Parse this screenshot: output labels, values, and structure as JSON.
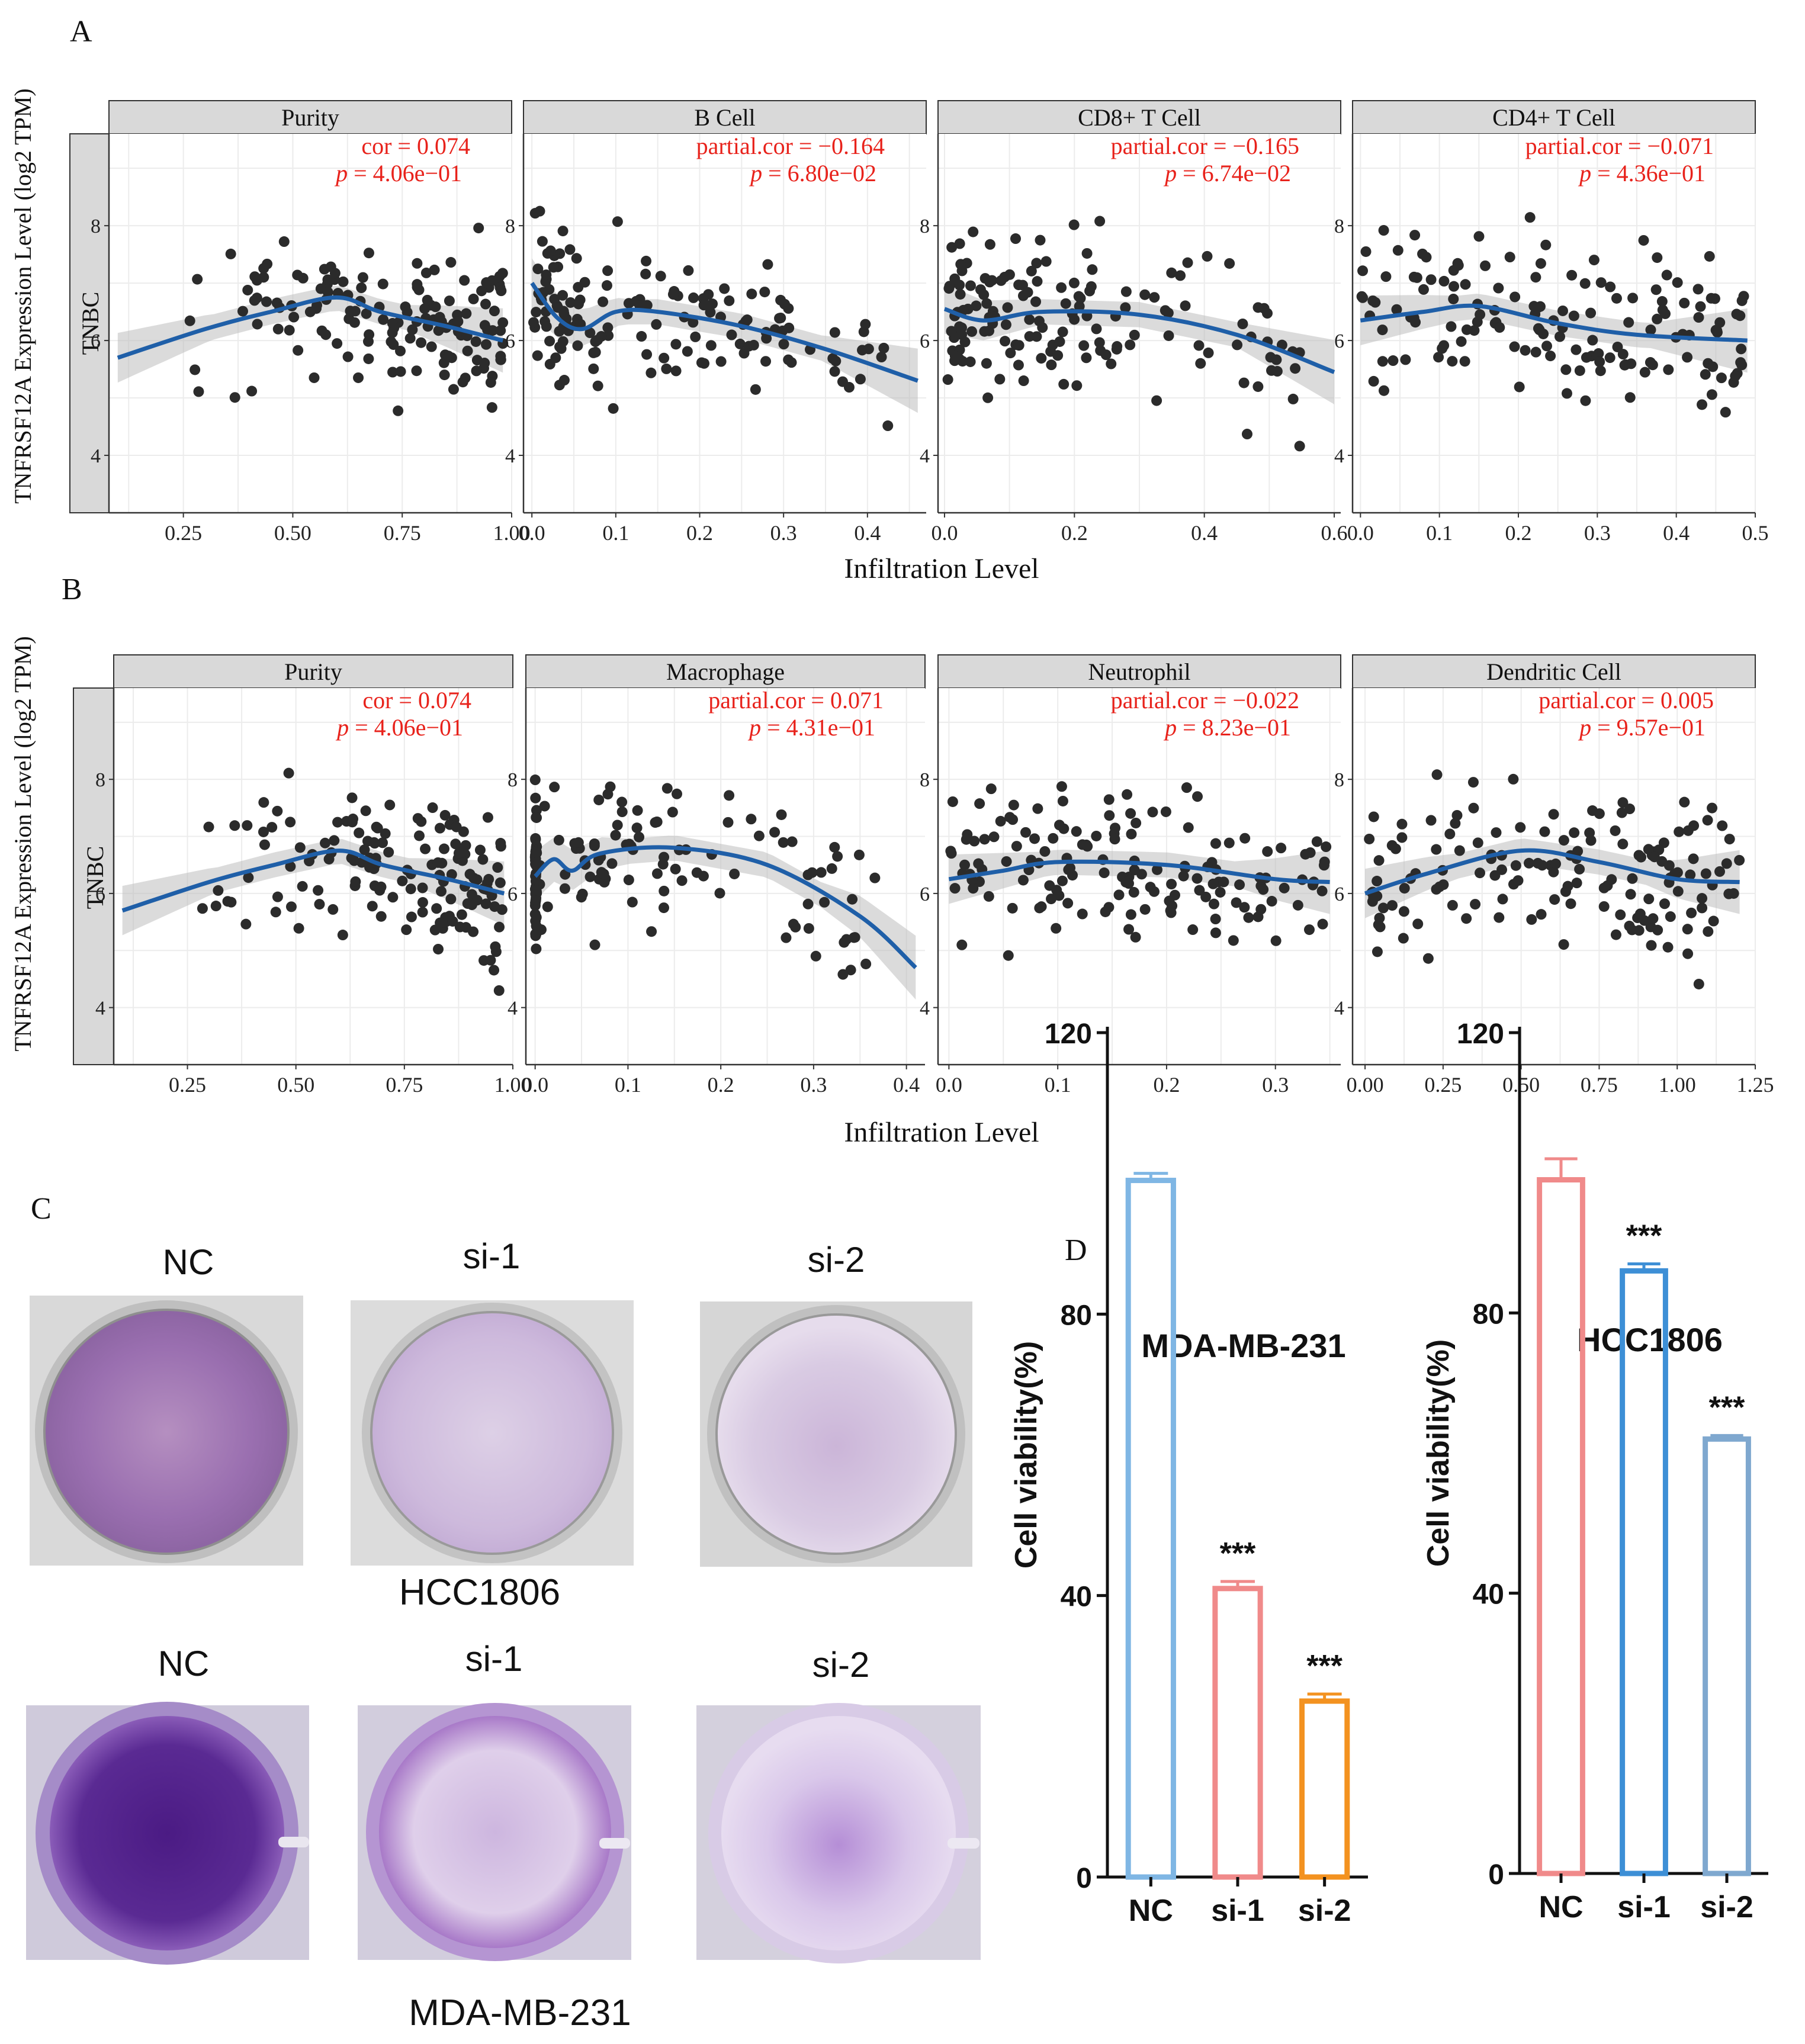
{
  "figure": {
    "panel_labels": [
      "A",
      "B",
      "C",
      "D"
    ]
  },
  "timer": {
    "row_label": "TNBC",
    "ylabel": "TNFRSF12A Expression Level (log2 TPM)",
    "xlabel": "Infiltration Level"
  },
  "colonies": {
    "top_cell_line": "HCC1806",
    "bottom_cell_line": "MDA-MB-231",
    "conditions": [
      "NC",
      "si-1",
      "si-2"
    ]
  },
  "chart_data": [
    {
      "type": "scatter",
      "panel": "A",
      "facet": "Purity",
      "stat_label": "cor = 0.074",
      "p_label": "4.06e−01",
      "x_ticks": [
        "0.25",
        "0.50",
        "0.75",
        "1.00"
      ],
      "xlim": [
        0.08,
        1.0
      ],
      "y_ticks": [
        "4",
        "6",
        "8"
      ],
      "ylim": [
        3.0,
        9.6
      ],
      "fit": [
        [
          0.1,
          5.7
        ],
        [
          0.3,
          6.2
        ],
        [
          0.45,
          6.5
        ],
        [
          0.6,
          6.75
        ],
        [
          0.7,
          6.5
        ],
        [
          0.85,
          6.25
        ],
        [
          0.98,
          6.0
        ]
      ],
      "n": 150,
      "xr": [
        0.1,
        0.98
      ],
      "shape": "purity"
    },
    {
      "type": "scatter",
      "panel": "A",
      "facet": "B Cell",
      "stat_label": "partial.cor = −0.164",
      "p_label": "6.80e−02",
      "x_ticks": [
        "0.0",
        "0.1",
        "0.2",
        "0.3",
        "0.4"
      ],
      "xlim": [
        -0.01,
        0.47
      ],
      "y_ticks": [
        "4",
        "6",
        "8"
      ],
      "ylim": [
        3.0,
        9.6
      ],
      "fit": [
        [
          0.0,
          7.0
        ],
        [
          0.03,
          6.4
        ],
        [
          0.06,
          6.2
        ],
        [
          0.1,
          6.5
        ],
        [
          0.15,
          6.5
        ],
        [
          0.25,
          6.25
        ],
        [
          0.35,
          5.85
        ],
        [
          0.46,
          5.3
        ]
      ],
      "n": 150,
      "xr": [
        0.0,
        0.46
      ],
      "shape": "skewed"
    },
    {
      "type": "scatter",
      "panel": "A",
      "facet": "CD8+ T Cell",
      "stat_label": "partial.cor = −0.165",
      "p_label": "6.74e−02",
      "x_ticks": [
        "0.0",
        "0.2",
        "0.4",
        "0.6"
      ],
      "xlim": [
        -0.01,
        0.61
      ],
      "y_ticks": [
        "4",
        "6",
        "8"
      ],
      "ylim": [
        3.0,
        9.6
      ],
      "fit": [
        [
          0.0,
          6.55
        ],
        [
          0.06,
          6.35
        ],
        [
          0.15,
          6.5
        ],
        [
          0.3,
          6.45
        ],
        [
          0.45,
          6.1
        ],
        [
          0.6,
          5.45
        ]
      ],
      "n": 150,
      "xr": [
        0.0,
        0.6
      ],
      "shape": "skewed"
    },
    {
      "type": "scatter",
      "panel": "A",
      "facet": "CD4+ T Cell",
      "stat_label": "partial.cor = −0.071",
      "p_label": "4.36e−01",
      "x_ticks": [
        "0.0",
        "0.1",
        "0.2",
        "0.3",
        "0.4",
        "0.5"
      ],
      "xlim": [
        -0.01,
        0.5
      ],
      "y_ticks": [
        "4",
        "6",
        "8"
      ],
      "ylim": [
        3.0,
        9.6
      ],
      "fit": [
        [
          0.0,
          6.35
        ],
        [
          0.08,
          6.5
        ],
        [
          0.15,
          6.6
        ],
        [
          0.25,
          6.3
        ],
        [
          0.35,
          6.1
        ],
        [
          0.49,
          6.0
        ]
      ],
      "n": 150,
      "xr": [
        0.0,
        0.49
      ],
      "shape": "uniform"
    },
    {
      "type": "scatter",
      "panel": "B",
      "facet": "Purity",
      "stat_label": "cor = 0.074",
      "p_label": "4.06e−01",
      "x_ticks": [
        "0.25",
        "0.50",
        "0.75",
        "1.00"
      ],
      "xlim": [
        0.08,
        1.0
      ],
      "y_ticks": [
        "4",
        "6",
        "8"
      ],
      "ylim": [
        3.0,
        9.6
      ],
      "fit": [
        [
          0.1,
          5.7
        ],
        [
          0.3,
          6.2
        ],
        [
          0.45,
          6.5
        ],
        [
          0.6,
          6.75
        ],
        [
          0.7,
          6.5
        ],
        [
          0.85,
          6.25
        ],
        [
          0.98,
          6.0
        ]
      ],
      "n": 150,
      "xr": [
        0.1,
        0.98
      ],
      "shape": "purity"
    },
    {
      "type": "scatter",
      "panel": "B",
      "facet": "Macrophage",
      "stat_label": "partial.cor = 0.071",
      "p_label": "4.31e−01",
      "x_ticks": [
        "0.0",
        "0.1",
        "0.2",
        "0.3",
        "0.4"
      ],
      "xlim": [
        -0.01,
        0.42
      ],
      "y_ticks": [
        "4",
        "6",
        "8"
      ],
      "ylim": [
        3.0,
        9.6
      ],
      "fit": [
        [
          0.0,
          6.3
        ],
        [
          0.02,
          6.6
        ],
        [
          0.04,
          6.4
        ],
        [
          0.07,
          6.7
        ],
        [
          0.15,
          6.8
        ],
        [
          0.25,
          6.5
        ],
        [
          0.35,
          5.6
        ],
        [
          0.41,
          4.7
        ]
      ],
      "n": 150,
      "xr": [
        0.0,
        0.41
      ],
      "shape": "macro"
    },
    {
      "type": "scatter",
      "panel": "B",
      "facet": "Neutrophil",
      "stat_label": "partial.cor = −0.022",
      "p_label": "8.23e−01",
      "x_ticks": [
        "0.0",
        "0.1",
        "0.2",
        "0.3"
      ],
      "xlim": [
        -0.01,
        0.36
      ],
      "y_ticks": [
        "4",
        "6",
        "8"
      ],
      "ylim": [
        3.0,
        9.6
      ],
      "fit": [
        [
          0.0,
          6.25
        ],
        [
          0.05,
          6.4
        ],
        [
          0.1,
          6.55
        ],
        [
          0.2,
          6.5
        ],
        [
          0.3,
          6.25
        ],
        [
          0.35,
          6.2
        ]
      ],
      "n": 150,
      "xr": [
        0.0,
        0.35
      ],
      "shape": "uniform"
    },
    {
      "type": "scatter",
      "panel": "B",
      "facet": "Dendritic Cell",
      "stat_label": "partial.cor = 0.005",
      "p_label": "9.57e−01",
      "x_ticks": [
        "0.00",
        "0.25",
        "0.50",
        "0.75",
        "1.00",
        "1.25"
      ],
      "xlim": [
        -0.04,
        1.25
      ],
      "y_ticks": [
        "4",
        "6",
        "8"
      ],
      "ylim": [
        3.0,
        9.6
      ],
      "fit": [
        [
          0.0,
          6.0
        ],
        [
          0.2,
          6.35
        ],
        [
          0.5,
          6.75
        ],
        [
          0.75,
          6.55
        ],
        [
          1.0,
          6.25
        ],
        [
          1.2,
          6.2
        ]
      ],
      "n": 150,
      "xr": [
        0.0,
        1.2
      ],
      "shape": "uniform"
    },
    {
      "type": "bar",
      "panel": "D",
      "title": "MDA-MB-231",
      "categories": [
        "NC",
        "si-1",
        "si-2"
      ],
      "values": [
        99,
        41,
        25
      ],
      "errors": [
        1,
        1,
        1
      ],
      "colors": [
        "#7fb6e4",
        "#f08a8a",
        "#f39220"
      ],
      "significance": [
        "",
        "***",
        "***"
      ],
      "ylabel": "Cell viability(%)",
      "ylim": [
        0,
        120
      ],
      "y_ticks": [
        "0",
        "40",
        "80",
        "120"
      ]
    },
    {
      "type": "bar",
      "panel": "D",
      "title": "HCC1806",
      "categories": [
        "NC",
        "si-1",
        "si-2"
      ],
      "values": [
        99,
        86,
        62
      ],
      "errors": [
        3,
        1,
        0.5
      ],
      "colors": [
        "#f08a8a",
        "#3d8fd6",
        "#7fa8cf"
      ],
      "significance": [
        "",
        "***",
        "***"
      ],
      "ylabel": "Cell viability(%)",
      "ylim": [
        0,
        120
      ],
      "y_ticks": [
        "0",
        "40",
        "80",
        "120"
      ]
    }
  ]
}
